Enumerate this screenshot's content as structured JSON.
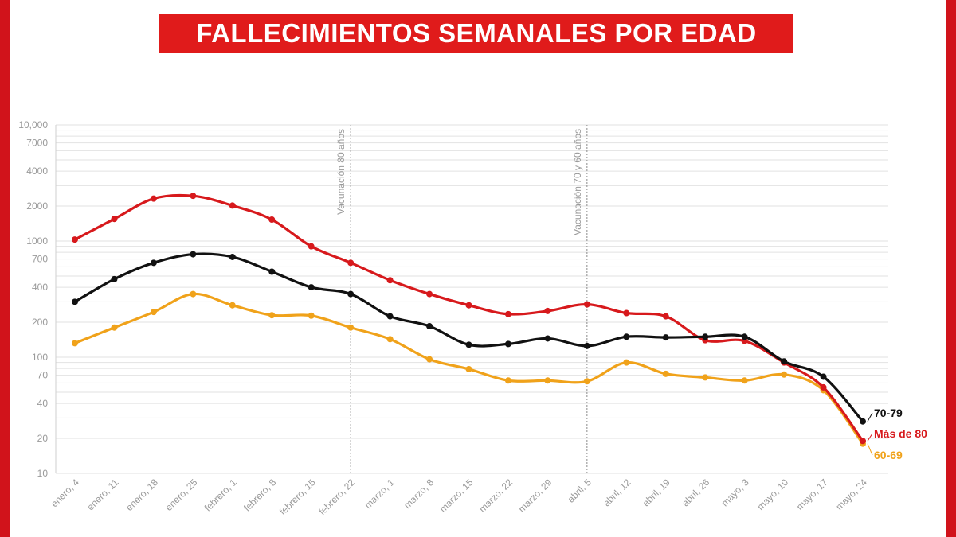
{
  "title": "FALLECIMIENTOS SEMANALES POR EDAD",
  "colors": {
    "frame": "#d1131b",
    "title_bg": "#e01b1b",
    "grid": "#e2e2e2"
  },
  "chart_data": {
    "type": "line",
    "title": "FALLECIMIENTOS SEMANALES POR EDAD",
    "xlabel": "",
    "ylabel": "",
    "yscale": "log",
    "ylim": [
      10,
      10000
    ],
    "y_tick_values": [
      10,
      20,
      40,
      70,
      100,
      200,
      400,
      700,
      1000,
      2000,
      4000,
      7000,
      10000
    ],
    "y_tick_labels": [
      "10",
      "20",
      "40",
      "70",
      "100",
      "200",
      "400",
      "700",
      "1000",
      "2000",
      "4000",
      "7000",
      "10,000"
    ],
    "categories": [
      "enero, 4",
      "enero, 11",
      "enero, 18",
      "enero, 25",
      "febrero, 1",
      "febrero, 8",
      "febrero, 15",
      "febrero, 22",
      "marzo, 1",
      "marzo, 8",
      "marzo, 15",
      "marzo, 22",
      "marzo, 29",
      "abril, 5",
      "abril, 12",
      "abril, 19",
      "abril, 26",
      "mayo, 3",
      "mayo, 10",
      "mayo, 17",
      "mayo, 24"
    ],
    "series": [
      {
        "name": "Más de 80",
        "color": "#d7191c",
        "values": [
          1030,
          1550,
          2320,
          2450,
          2020,
          1530,
          900,
          650,
          460,
          350,
          280,
          235,
          250,
          285,
          240,
          225,
          140,
          138,
          90,
          55,
          19
        ]
      },
      {
        "name": "70-79",
        "color": "#111111",
        "values": [
          300,
          470,
          650,
          770,
          730,
          545,
          400,
          350,
          225,
          185,
          128,
          130,
          145,
          125,
          150,
          148,
          150,
          150,
          92,
          68,
          28
        ]
      },
      {
        "name": "60-69",
        "color": "#f0a21a",
        "values": [
          132,
          180,
          245,
          350,
          280,
          230,
          228,
          180,
          143,
          96,
          79,
          63,
          63,
          62,
          90,
          72,
          67,
          63,
          71,
          52,
          18
        ]
      }
    ],
    "annotations": [
      {
        "x": "febrero, 22",
        "text": "Vacunación 80 años"
      },
      {
        "x": "abril, 5",
        "text": "Vacunación 70 y 60 años"
      }
    ],
    "grid": true,
    "legend": "end-of-line labels, right"
  }
}
